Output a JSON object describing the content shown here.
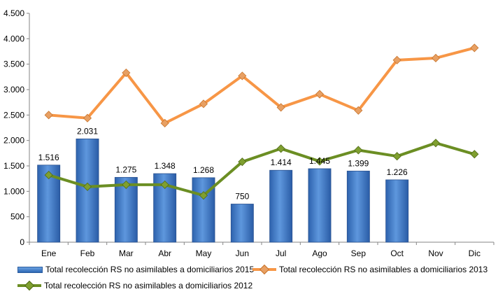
{
  "chart_data": {
    "type": "bar+line",
    "categories": [
      "Ene",
      "Feb",
      "Mar",
      "Abr",
      "May",
      "Jun",
      "Jul",
      "Ago",
      "Sep",
      "Oct",
      "Nov",
      "Dic"
    ],
    "ylim": [
      0,
      4500
    ],
    "yticks": [
      0,
      500,
      1000,
      1500,
      2000,
      2500,
      3000,
      3500,
      4000,
      4500
    ],
    "ytick_labels": [
      "0",
      "500",
      "1.000",
      "1.500",
      "2.000",
      "2.500",
      "3.000",
      "3.500",
      "4.000",
      "4.500"
    ],
    "grid": false,
    "legend_position": "bottom",
    "series": [
      {
        "name": "Total recolección RS no asimilables a domiciliarios 2015",
        "kind": "bar",
        "color": "#3a75c4",
        "values": [
          1516,
          2031,
          1275,
          1348,
          1268,
          750,
          1414,
          1445,
          1399,
          1226,
          null,
          null
        ],
        "data_labels": [
          "1.516",
          "2.031",
          "1.275",
          "1.348",
          "1.268",
          "750",
          "1.414",
          "1.445",
          "1.399",
          "1.226",
          "",
          ""
        ]
      },
      {
        "name": "Total recolección RS no asimilables a domiciliarios 2013",
        "kind": "line",
        "color": "#f79646",
        "marker_color": "#e8a063",
        "values": [
          2500,
          2440,
          3330,
          2340,
          2720,
          3270,
          2650,
          2910,
          2590,
          3580,
          3620,
          3820
        ]
      },
      {
        "name": "Total recolección RS no asimilables a domiciliarios 2012",
        "kind": "line",
        "color": "#6b8e23",
        "marker_color": "#7f9f2f",
        "values": [
          1320,
          1090,
          1130,
          1130,
          920,
          1580,
          1840,
          1590,
          1810,
          1690,
          1950,
          1730
        ]
      }
    ]
  }
}
